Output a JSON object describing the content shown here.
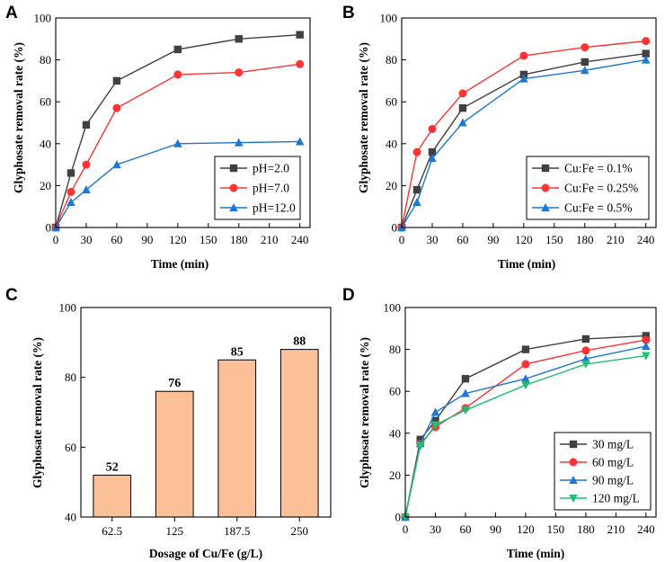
{
  "chart_data": [
    {
      "panel": "A",
      "type": "line",
      "xlabel": "Time (min)",
      "ylabel": "Glyphosate removal rate (%)",
      "xlim": [
        0,
        250
      ],
      "ylim": [
        0,
        100
      ],
      "xticks": [
        0,
        30,
        60,
        90,
        120,
        150,
        180,
        210,
        240
      ],
      "yticks": [
        0,
        20,
        40,
        60,
        80,
        100
      ],
      "legend": "bottom-right",
      "series": [
        {
          "name": "pH=2.0",
          "color": "#404040",
          "marker": "square",
          "x": [
            0,
            15,
            30,
            60,
            120,
            180,
            240
          ],
          "y": [
            0,
            26,
            49,
            70,
            85,
            90,
            92
          ]
        },
        {
          "name": "pH=7.0",
          "color": "#ff3333",
          "marker": "circle",
          "x": [
            0,
            15,
            30,
            60,
            120,
            180,
            240
          ],
          "y": [
            0,
            17,
            30,
            57,
            73,
            74,
            78
          ]
        },
        {
          "name": "pH=12.0",
          "color": "#1f77d4",
          "marker": "triangle-up",
          "x": [
            0,
            15,
            30,
            60,
            120,
            180,
            240
          ],
          "y": [
            0,
            12,
            18,
            30,
            40,
            40.5,
            41
          ]
        }
      ]
    },
    {
      "panel": "B",
      "type": "line",
      "xlabel": "Time (min)",
      "ylabel": "Glyphosate removal rate (%)",
      "xlim": [
        0,
        250
      ],
      "ylim": [
        0,
        100
      ],
      "xticks": [
        0,
        30,
        60,
        90,
        120,
        150,
        180,
        210,
        240
      ],
      "yticks": [
        0,
        20,
        40,
        60,
        80,
        100
      ],
      "legend": "bottom-right",
      "series": [
        {
          "name": "Cu:Fe = 0.1%",
          "color": "#404040",
          "marker": "square",
          "x": [
            0,
            15,
            30,
            60,
            120,
            180,
            240
          ],
          "y": [
            0,
            18,
            36,
            57,
            73,
            79,
            83
          ]
        },
        {
          "name": "Cu:Fe = 0.25%",
          "color": "#ff3333",
          "marker": "circle",
          "x": [
            0,
            15,
            30,
            60,
            120,
            180,
            240
          ],
          "y": [
            0,
            36,
            47,
            64,
            82,
            86,
            89
          ]
        },
        {
          "name": "Cu:Fe = 0.5%",
          "color": "#1f77d4",
          "marker": "triangle-up",
          "x": [
            0,
            15,
            30,
            60,
            120,
            180,
            240
          ],
          "y": [
            0,
            12,
            33,
            50,
            71,
            75,
            80
          ]
        }
      ]
    },
    {
      "panel": "C",
      "type": "bar",
      "xlabel": "Dosage of Cu/Fe (g/L)",
      "ylabel": "Glyphosate removal rate (%)",
      "ylim": [
        40,
        100
      ],
      "yticks": [
        40,
        60,
        80,
        100
      ],
      "categories": [
        "62.5",
        "125",
        "187.5",
        "250"
      ],
      "values": [
        52,
        76,
        85,
        88
      ],
      "data_labels": [
        "52",
        "76",
        "85",
        "88"
      ],
      "bar_color": "#fbc097"
    },
    {
      "panel": "D",
      "type": "line",
      "xlabel": "Time (min)",
      "ylabel": "Glyphosate removal rate (%)",
      "xlim": [
        0,
        250
      ],
      "ylim": [
        0,
        100
      ],
      "xticks": [
        0,
        30,
        60,
        90,
        120,
        150,
        180,
        210,
        240
      ],
      "yticks": [
        0,
        20,
        40,
        60,
        80,
        100
      ],
      "legend": "bottom-right",
      "series": [
        {
          "name": "30 mg/L",
          "color": "#404040",
          "marker": "square",
          "x": [
            0,
            15,
            30,
            60,
            120,
            180,
            240
          ],
          "y": [
            0,
            37,
            46,
            66,
            80,
            85,
            86.5
          ]
        },
        {
          "name": "60 mg/L",
          "color": "#ff3333",
          "marker": "circle",
          "x": [
            0,
            15,
            30,
            60,
            120,
            180,
            240
          ],
          "y": [
            0,
            35,
            43,
            52,
            73,
            79.5,
            84.5
          ]
        },
        {
          "name": "90 mg/L",
          "color": "#1f77d4",
          "marker": "triangle-up",
          "x": [
            0,
            15,
            30,
            60,
            120,
            180,
            240
          ],
          "y": [
            0,
            35,
            50,
            59,
            66,
            75.5,
            81.5
          ]
        },
        {
          "name": "120 mg/L",
          "color": "#21bf73",
          "marker": "triangle-down",
          "x": [
            0,
            15,
            30,
            60,
            120,
            180,
            240
          ],
          "y": [
            0,
            34,
            44,
            51,
            63,
            73,
            77
          ]
        }
      ]
    }
  ]
}
